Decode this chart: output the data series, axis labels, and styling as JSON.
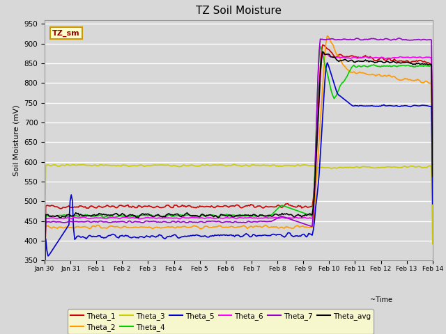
{
  "title": "TZ Soil Moisture",
  "xlabel": "~Time",
  "ylabel": "Soil Moisture (mV)",
  "ylim": [
    350,
    960
  ],
  "yticks": [
    350,
    400,
    450,
    500,
    550,
    600,
    650,
    700,
    750,
    800,
    850,
    900,
    950
  ],
  "bg_color": "#d8d8d8",
  "plot_bg_color": "#d8d8d8",
  "legend_box_color": "#ffffcc",
  "legend_box_edge": "#cc9900",
  "label_box_color": "#ffffcc",
  "label_box_edge": "#cc9900",
  "series_colors": {
    "Theta_1": "#cc0000",
    "Theta_2": "#ff9900",
    "Theta_3": "#cccc00",
    "Theta_4": "#00cc00",
    "Theta_5": "#0000cc",
    "Theta_6": "#ff00ff",
    "Theta_7": "#9900cc",
    "Theta_avg": "#000000"
  },
  "n_points": 336,
  "xtick_labels": [
    "Jan 30",
    "Jan 31",
    "Feb 1",
    "Feb 2",
    "Feb 3",
    "Feb 4",
    "Feb 5",
    "Feb 6",
    "Feb 7",
    "Feb 8",
    "Feb 9",
    "Feb 10",
    "Feb 11",
    "Feb 12",
    "Feb 13",
    "Feb 14"
  ],
  "jump_index": 232
}
